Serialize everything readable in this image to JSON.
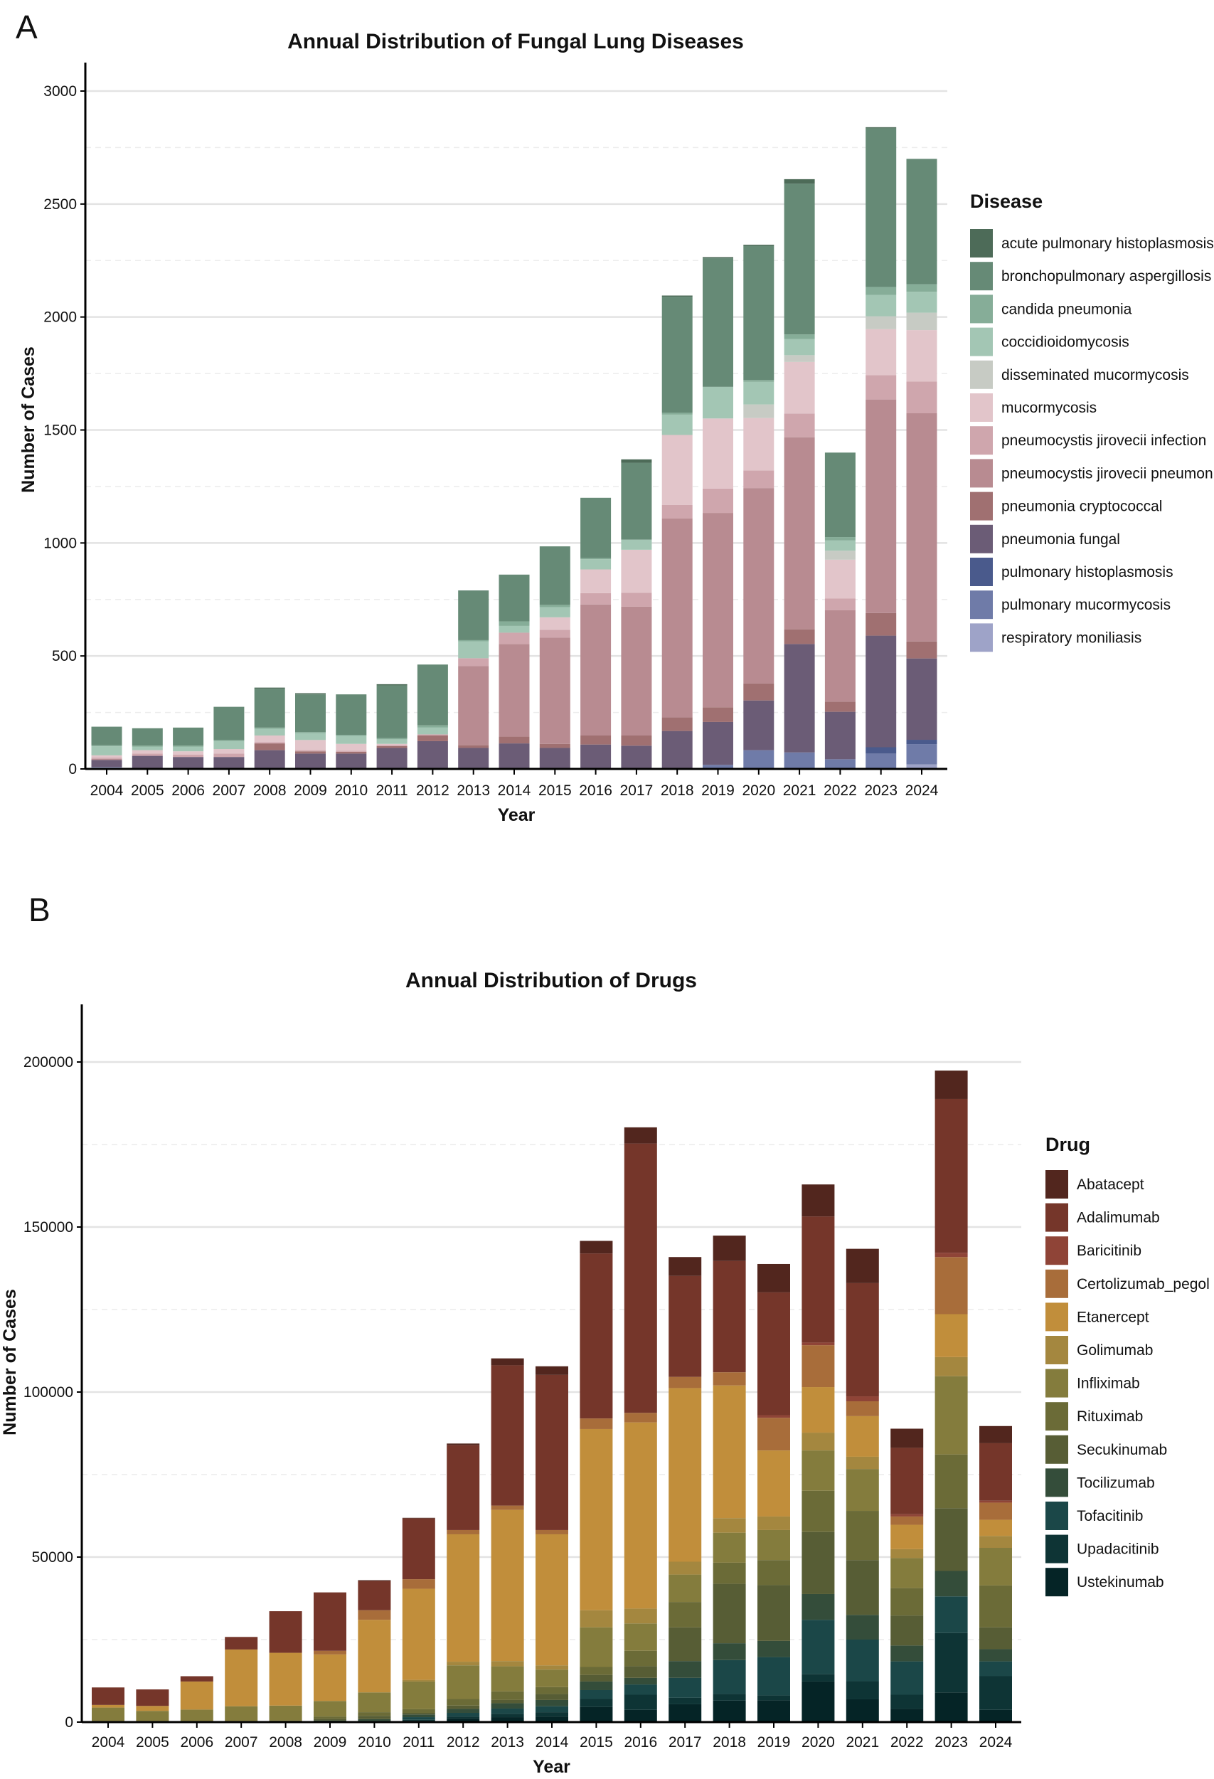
{
  "chart_data": [
    {
      "panel_label": "A",
      "type": "bar",
      "stacked": true,
      "title": "Annual Distribution of Fungal Lung Diseases",
      "xlabel": "Year",
      "ylabel": "Number of Cases",
      "ylim": [
        0,
        3000
      ],
      "yticks": [
        0,
        500,
        1000,
        1500,
        2000,
        2500,
        3000
      ],
      "ytick_labels": [
        "0",
        "500",
        "1000",
        "1500",
        "2000",
        "2500",
        "3000"
      ],
      "grid": true,
      "legend_title": "Disease",
      "legend_position": "right",
      "categories": [
        "2004",
        "2005",
        "2006",
        "2007",
        "2008",
        "2009",
        "2010",
        "2011",
        "2012",
        "2013",
        "2014",
        "2015",
        "2016",
        "2017",
        "2018",
        "2019",
        "2020",
        "2021",
        "2022",
        "2023",
        "2024"
      ],
      "series": [
        {
          "name": "acute pulmonary histoplasmosis",
          "color": "#4d6b58",
          "values": [
            0,
            0,
            0,
            0,
            5,
            5,
            0,
            5,
            0,
            0,
            0,
            0,
            0,
            15,
            5,
            5,
            5,
            20,
            0,
            5,
            0
          ]
        },
        {
          "name": "bronchopulmonary aspergillosis",
          "color": "#668a76",
          "values": [
            82,
            77,
            80,
            147,
            172,
            167,
            179,
            234,
            269,
            220,
            207,
            259,
            267,
            340,
            514,
            569,
            594,
            667,
            374,
            702,
            555
          ]
        },
        {
          "name": "candida pneumonia",
          "color": "#86ad98",
          "values": [
            5,
            5,
            5,
            5,
            5,
            5,
            5,
            5,
            10,
            5,
            20,
            10,
            5,
            0,
            8,
            0,
            8,
            20,
            15,
            35,
            33
          ]
        },
        {
          "name": "coccidioidomycosis",
          "color": "#a3c6b4",
          "values": [
            40,
            15,
            20,
            35,
            30,
            30,
            35,
            20,
            30,
            75,
            30,
            45,
            45,
            45,
            90,
            140,
            100,
            72,
            45,
            95,
            93
          ]
        },
        {
          "name": "disseminated mucormycosis",
          "color": "#c7cbc4",
          "values": [
            0,
            0,
            0,
            0,
            0,
            0,
            0,
            0,
            0,
            0,
            0,
            0,
            0,
            0,
            0,
            0,
            60,
            30,
            40,
            57,
            77
          ]
        },
        {
          "name": "mucormycosis",
          "color": "#e2c5ca",
          "values": [
            10,
            15,
            15,
            20,
            30,
            45,
            30,
            5,
            0,
            0,
            0,
            55,
            105,
            190,
            310,
            310,
            232,
            228,
            172,
            203,
            228
          ]
        },
        {
          "name": "pneumocystis jirovecii infection",
          "color": "#cfa6ad",
          "values": [
            5,
            10,
            10,
            15,
            5,
            5,
            5,
            5,
            5,
            35,
            50,
            35,
            50,
            62,
            60,
            108,
            78,
            105,
            51,
            108,
            140
          ]
        },
        {
          "name": "pneumocystis jirovecii pneumonia",
          "color": "#b88b91",
          "values": [
            5,
            0,
            0,
            0,
            0,
            0,
            0,
            0,
            0,
            350,
            410,
            470,
            580,
            570,
            880,
            860,
            865,
            850,
            405,
            945,
            1010
          ]
        },
        {
          "name": "pneumonia cryptococcal",
          "color": "#a07071",
          "values": [
            0,
            0,
            0,
            0,
            30,
            10,
            8,
            8,
            25,
            12,
            30,
            18,
            40,
            45,
            60,
            65,
            75,
            65,
            45,
            100,
            75
          ]
        },
        {
          "name": "pneumonia fungal",
          "color": "#6b5c76",
          "values": [
            32,
            55,
            50,
            50,
            80,
            65,
            65,
            90,
            120,
            90,
            110,
            90,
            105,
            100,
            165,
            190,
            220,
            480,
            210,
            494,
            360
          ]
        },
        {
          "name": "pulmonary histoplasmosis",
          "color": "#4a5a8c",
          "values": [
            0,
            0,
            0,
            0,
            0,
            0,
            0,
            0,
            0,
            0,
            0,
            0,
            0,
            0,
            0,
            0,
            0,
            0,
            0,
            28,
            19
          ]
        },
        {
          "name": "pulmonary mucormycosis",
          "color": "#6f7ba8",
          "values": [
            0,
            0,
            0,
            0,
            0,
            0,
            0,
            0,
            0,
            0,
            0,
            0,
            0,
            0,
            0,
            15,
            80,
            70,
            40,
            65,
            90
          ]
        },
        {
          "name": "respiratory moniliasis",
          "color": "#9ea3c8",
          "values": [
            8,
            3,
            3,
            3,
            3,
            3,
            3,
            3,
            3,
            3,
            3,
            3,
            3,
            3,
            3,
            3,
            3,
            3,
            3,
            3,
            20
          ]
        }
      ]
    },
    {
      "panel_label": "B",
      "type": "bar",
      "stacked": true,
      "title": "Annual Distribution of Drugs",
      "xlabel": "Year",
      "ylabel": "Number of Cases",
      "ylim": [
        0,
        215000
      ],
      "yticks": [
        0,
        50000,
        100000,
        150000,
        200000
      ],
      "ytick_labels": [
        "0",
        "50000",
        "100000",
        "150000",
        "200000"
      ],
      "grid": true,
      "legend_title": "Drug",
      "legend_position": "right",
      "categories": [
        "2004",
        "2005",
        "2006",
        "2007",
        "2008",
        "2009",
        "2010",
        "2011",
        "2012",
        "2013",
        "2014",
        "2015",
        "2016",
        "2017",
        "2018",
        "2019",
        "2020",
        "2021",
        "2022",
        "2023",
        "2024"
      ],
      "series": [
        {
          "name": "Abatacept",
          "color": "#52261e",
          "values": [
            0,
            0,
            0,
            0,
            0,
            0,
            300,
            200,
            500,
            2100,
            2600,
            3800,
            4900,
            5700,
            7700,
            8600,
            9700,
            10400,
            5800,
            8600,
            5200
          ]
        },
        {
          "name": "Adalimumab",
          "color": "#75362a",
          "values": [
            5300,
            5000,
            1600,
            3800,
            12600,
            17700,
            8800,
            18400,
            25700,
            42500,
            47000,
            50000,
            81600,
            30600,
            33700,
            37200,
            38200,
            34300,
            20100,
            46600,
            17400
          ]
        },
        {
          "name": "Baricitinib",
          "color": "#8f4437",
          "values": [
            0,
            0,
            0,
            0,
            0,
            0,
            0,
            0,
            0,
            0,
            0,
            0,
            0,
            0,
            0,
            800,
            800,
            1500,
            700,
            1300,
            600
          ]
        },
        {
          "name": "Certolizumab_pegol",
          "color": "#a86d3a",
          "values": [
            0,
            0,
            0,
            0,
            0,
            1100,
            2900,
            2900,
            1300,
            1300,
            1300,
            3200,
            2900,
            3400,
            4000,
            9900,
            12700,
            4500,
            2500,
            17300,
            5200
          ]
        },
        {
          "name": "Etanercept",
          "color": "#c18e3b",
          "values": [
            800,
            1500,
            8500,
            17200,
            16000,
            14100,
            22000,
            27600,
            38600,
            45800,
            39700,
            54900,
            56400,
            52600,
            40200,
            20000,
            13800,
            12300,
            7400,
            13000,
            4900
          ]
        },
        {
          "name": "Golimumab",
          "color": "#a4873f",
          "values": [
            0,
            0,
            0,
            0,
            0,
            0,
            0,
            500,
            1100,
            1600,
            1300,
            5200,
            4500,
            3900,
            4400,
            4100,
            5400,
            3700,
            2700,
            5800,
            3600
          ]
        },
        {
          "name": "Infliximab",
          "color": "#847c3d",
          "values": [
            4000,
            3000,
            3400,
            4400,
            4500,
            4700,
            6000,
            8400,
            10200,
            7600,
            5300,
            12000,
            8300,
            8300,
            9100,
            9100,
            12200,
            12700,
            9100,
            23700,
            11400
          ]
        },
        {
          "name": "Rituximab",
          "color": "#6b6b37",
          "values": [
            400,
            400,
            400,
            400,
            500,
            700,
            1100,
            1100,
            2000,
            2600,
            2100,
            2400,
            4700,
            7700,
            6400,
            7600,
            12500,
            14900,
            8300,
            16300,
            12700
          ]
        },
        {
          "name": "Secukinumab",
          "color": "#575d35",
          "values": [
            0,
            0,
            0,
            0,
            0,
            500,
            1000,
            500,
            1000,
            1000,
            1800,
            2000,
            3500,
            10200,
            18000,
            16900,
            18800,
            16600,
            9100,
            19000,
            6600
          ]
        },
        {
          "name": "Tocilizumab",
          "color": "#344d3a",
          "values": [
            0,
            0,
            0,
            0,
            0,
            500,
            500,
            800,
            1200,
            1600,
            1900,
            2600,
            2000,
            5100,
            5100,
            4900,
            7800,
            7500,
            4800,
            7700,
            3700
          ]
        },
        {
          "name": "Tofacitinib",
          "color": "#1b4748",
          "values": [
            0,
            0,
            0,
            0,
            0,
            0,
            400,
            800,
            1100,
            1600,
            1800,
            2700,
            3100,
            6000,
            10300,
            11600,
            16400,
            12600,
            10100,
            11100,
            4500
          ]
        },
        {
          "name": "Upadacitinib",
          "color": "#0e3435",
          "values": [
            0,
            0,
            0,
            0,
            0,
            0,
            0,
            300,
            600,
            1000,
            1300,
            2400,
            4600,
            2000,
            2000,
            1500,
            2300,
            5500,
            4300,
            18000,
            10200
          ]
        },
        {
          "name": "Ustekinumab",
          "color": "#052426",
          "values": [
            0,
            0,
            0,
            0,
            0,
            0,
            0,
            400,
            1100,
            1500,
            1700,
            4600,
            3700,
            5400,
            6500,
            6600,
            12300,
            6900,
            4000,
            9000,
            3700
          ]
        }
      ]
    }
  ]
}
